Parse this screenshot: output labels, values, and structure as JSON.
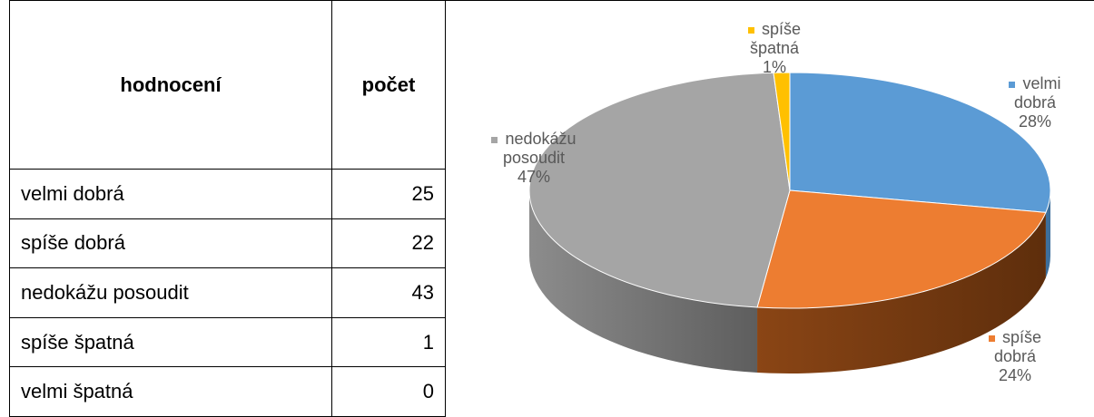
{
  "table": {
    "header": [
      "hodnocení",
      "počet"
    ],
    "rows": [
      [
        "velmi dobrá",
        25
      ],
      [
        "spíše dobrá",
        22
      ],
      [
        "nedokážu posoudit",
        43
      ],
      [
        "spíše špatná",
        1
      ],
      [
        "velmi špatná",
        0
      ]
    ]
  },
  "chart_data": {
    "type": "pie",
    "categories": [
      "velmi dobrá",
      "spíše dobrá",
      "nedokážu posoudit",
      "spíše špatná"
    ],
    "values": [
      28,
      24,
      47,
      1
    ],
    "value_labels": [
      "28%",
      "24%",
      "47%",
      "1%"
    ],
    "colors": [
      "#5b9bd5",
      "#ed7d31",
      "#a5a5a5",
      "#ffc000"
    ]
  }
}
